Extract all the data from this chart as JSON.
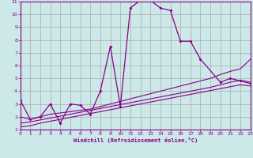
{
  "background_color": "#cce8e8",
  "grid_color": "#aaaaaa",
  "line_color": "#880088",
  "xlabel": "Windchill (Refroidissement éolien,°C)",
  "xlim": [
    0,
    23
  ],
  "ylim": [
    1,
    11
  ],
  "xticks": [
    0,
    1,
    2,
    3,
    4,
    5,
    6,
    7,
    8,
    9,
    10,
    11,
    12,
    13,
    14,
    15,
    16,
    17,
    18,
    19,
    20,
    21,
    22,
    23
  ],
  "yticks": [
    1,
    2,
    3,
    4,
    5,
    6,
    7,
    8,
    9,
    10,
    11
  ],
  "series": [
    {
      "x": [
        0,
        1,
        2,
        3,
        4,
        5,
        6,
        7,
        8,
        9,
        10,
        11,
        12,
        13,
        14,
        15,
        16,
        17,
        18,
        19,
        20,
        21,
        22,
        23
      ],
      "y": [
        1.2,
        1.3,
        1.5,
        1.65,
        1.8,
        1.95,
        2.1,
        2.25,
        2.4,
        2.55,
        2.7,
        2.85,
        3.0,
        3.15,
        3.3,
        3.45,
        3.6,
        3.75,
        3.9,
        4.05,
        4.2,
        4.35,
        4.5,
        4.4
      ],
      "marker": false,
      "lw": 0.8
    },
    {
      "x": [
        0,
        1,
        2,
        3,
        4,
        5,
        6,
        7,
        8,
        9,
        10,
        11,
        12,
        13,
        14,
        15,
        16,
        17,
        18,
        19,
        20,
        21,
        22,
        23
      ],
      "y": [
        1.5,
        1.6,
        1.75,
        1.9,
        2.05,
        2.2,
        2.35,
        2.5,
        2.65,
        2.8,
        2.95,
        3.1,
        3.25,
        3.4,
        3.55,
        3.7,
        3.85,
        4.0,
        4.15,
        4.3,
        4.5,
        4.7,
        4.85,
        4.7
      ],
      "marker": false,
      "lw": 0.8
    },
    {
      "x": [
        0,
        1,
        2,
        3,
        4,
        5,
        6,
        7,
        8,
        9,
        10,
        11,
        12,
        13,
        14,
        15,
        16,
        17,
        18,
        19,
        20,
        21,
        22,
        23
      ],
      "y": [
        2.0,
        1.8,
        2.0,
        2.2,
        2.3,
        2.4,
        2.5,
        2.6,
        2.8,
        3.0,
        3.2,
        3.4,
        3.6,
        3.8,
        4.0,
        4.2,
        4.4,
        4.6,
        4.8,
        5.0,
        5.3,
        5.55,
        5.75,
        6.5
      ],
      "marker": false,
      "lw": 0.8
    },
    {
      "x": [
        0,
        1,
        2,
        3,
        4,
        5,
        6,
        7,
        8,
        9,
        10,
        11,
        12,
        13,
        14,
        15,
        16,
        17,
        18,
        20,
        21,
        22,
        23
      ],
      "y": [
        3.3,
        1.8,
        2.0,
        3.0,
        1.5,
        3.0,
        2.9,
        2.2,
        4.0,
        7.5,
        2.8,
        10.5,
        11.1,
        11.1,
        10.5,
        10.3,
        7.9,
        7.9,
        6.5,
        4.7,
        5.0,
        4.8,
        4.6
      ],
      "marker": true,
      "lw": 0.9
    }
  ]
}
